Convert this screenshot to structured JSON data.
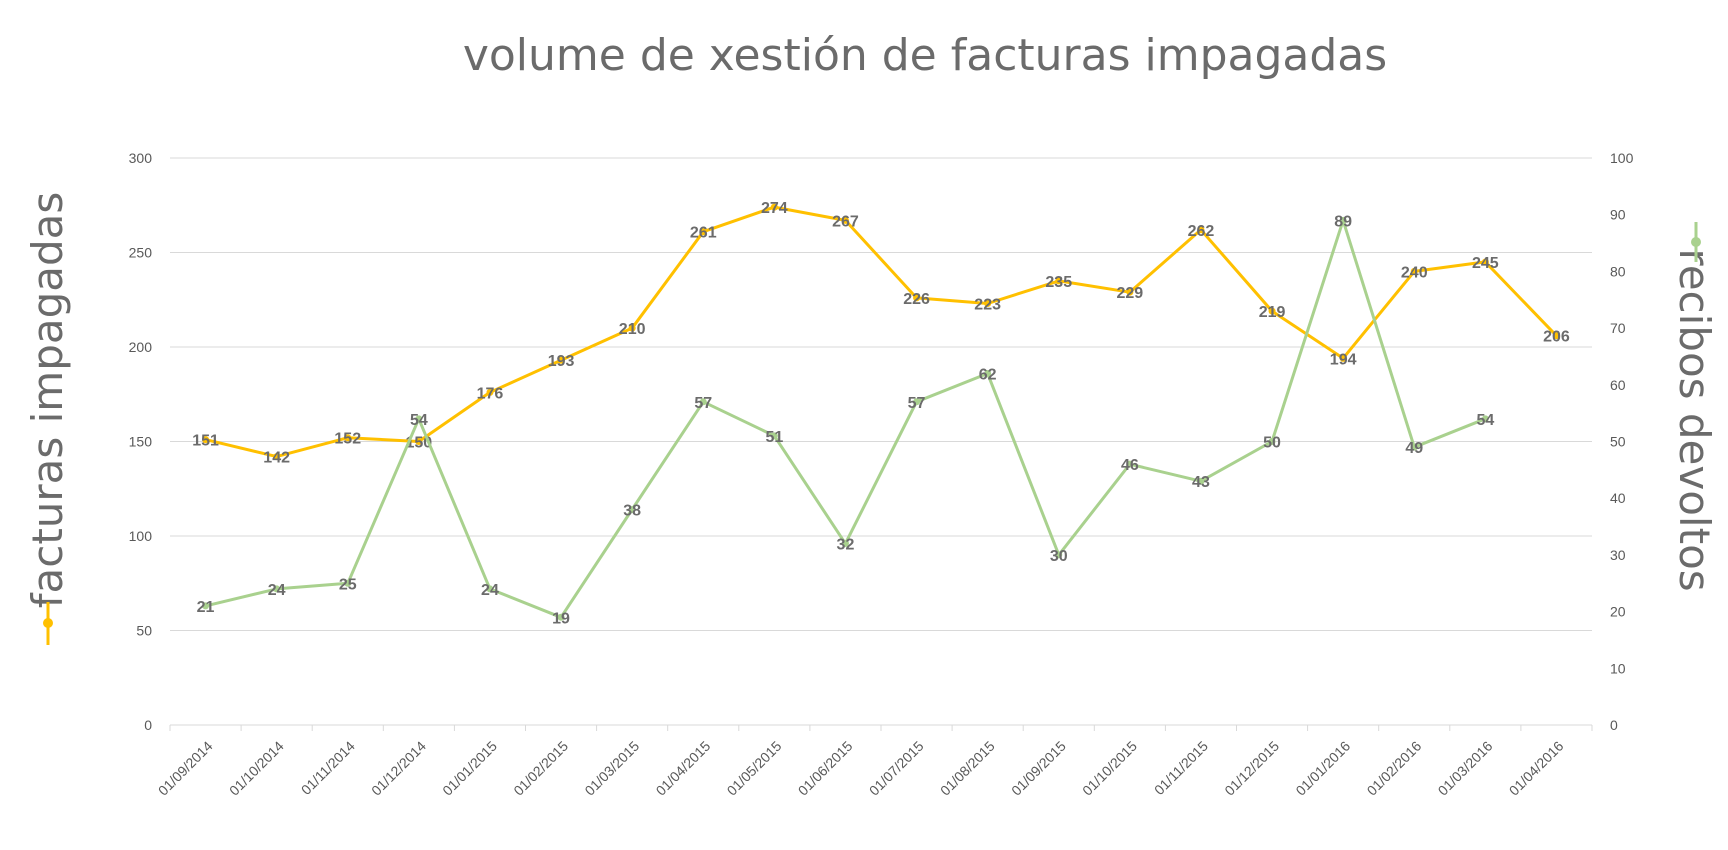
{
  "chart_data": {
    "type": "line",
    "title": "volume de xestión de facturas impagadas",
    "categories": [
      "01/09/2014",
      "01/10/2014",
      "01/11/2014",
      "01/12/2014",
      "01/01/2015",
      "01/02/2015",
      "01/03/2015",
      "01/04/2015",
      "01/05/2015",
      "01/06/2015",
      "01/07/2015",
      "01/08/2015",
      "01/09/2015",
      "01/10/2015",
      "01/11/2015",
      "01/12/2015",
      "01/01/2016",
      "01/02/2016",
      "01/03/2016",
      "01/04/2016"
    ],
    "ylabel": "facturas impagadas",
    "y2label": "recibos devoltos",
    "ylim": [
      0,
      300
    ],
    "y2lim": [
      0,
      100
    ],
    "yticks": [
      0,
      50,
      100,
      150,
      200,
      250,
      300
    ],
    "y2ticks": [
      0,
      10,
      20,
      30,
      40,
      50,
      60,
      70,
      80,
      90,
      100
    ],
    "grid": true,
    "series": [
      {
        "name": "facturas impagadas",
        "axis": "left",
        "color": "#FFC000",
        "values": [
          151,
          142,
          152,
          150,
          176,
          193,
          210,
          261,
          274,
          267,
          226,
          223,
          235,
          229,
          262,
          219,
          194,
          240,
          245,
          206
        ]
      },
      {
        "name": "recibos devoltos",
        "axis": "right",
        "color": "#A9D18E",
        "values": [
          21,
          24,
          25,
          54,
          24,
          19,
          38,
          57,
          51,
          32,
          57,
          62,
          30,
          46,
          43,
          50,
          89,
          49,
          54,
          null
        ]
      }
    ]
  }
}
